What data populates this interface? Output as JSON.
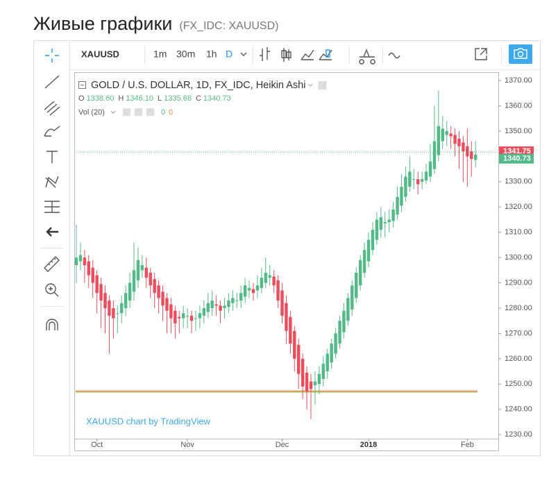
{
  "page": {
    "title": "Живые графики",
    "subtitle": "(FX_IDC: XAUUSD)"
  },
  "toolbar": {
    "symbol": "XAUUSD",
    "intervals": [
      "1m",
      "30m",
      "1h",
      "D"
    ]
  },
  "chart_data": {
    "type": "candlestick",
    "title": "GOLD / U.S. DOLLAR, 1D, FX_IDC, Heikin Ashi",
    "ohlc": [
      {
        "label": "O",
        "value": "1338.60"
      },
      {
        "label": "H",
        "value": "1346.10"
      },
      {
        "label": "L",
        "value": "1335.68"
      },
      {
        "label": "C",
        "value": "1340.73"
      }
    ],
    "volume": {
      "label": "Vol (20)",
      "values": [
        "0",
        "0"
      ]
    },
    "watermark": "XAUUSD chart by TradingView",
    "up_color": "#53b987",
    "down_color": "#eb4d5c",
    "categories": [
      null,
      null,
      null,
      null,
      null,
      "Oct",
      null,
      null,
      null,
      null,
      null,
      null,
      null,
      null,
      null,
      null,
      null,
      null,
      null,
      null,
      null,
      null,
      null,
      null,
      null,
      null,
      null,
      "Nov",
      null,
      null,
      null,
      null,
      null,
      null,
      null,
      null,
      null,
      null,
      null,
      null,
      null,
      null,
      null,
      null,
      null,
      null,
      null,
      null,
      null,
      null,
      "Dec",
      null,
      null,
      null,
      null,
      null,
      null,
      null,
      null,
      null,
      null,
      null,
      null,
      null,
      null,
      null,
      null,
      null,
      null,
      null,
      null,
      "2018",
      null,
      null,
      null,
      null,
      null,
      null,
      null,
      null,
      null,
      null,
      null,
      null,
      null,
      null,
      null,
      null,
      null,
      null,
      null,
      null,
      null,
      null,
      null,
      "Feb",
      null,
      null
    ],
    "open": [
      1297,
      1298.5,
      1300,
      1298.5,
      1296,
      1293,
      1289.5,
      1286,
      1283,
      1280,
      1278,
      1278,
      1280,
      1283,
      1286.5,
      1291,
      1295,
      1296,
      1294,
      1291.5,
      1289,
      1286.5,
      1284,
      1281.5,
      1279,
      1276.5,
      1276,
      1277,
      1277,
      1276,
      1276,
      1277,
      1278.5,
      1280,
      1281.5,
      1281,
      1280,
      1280.5,
      1282,
      1283,
      1283,
      1284.5,
      1287,
      1287.5,
      1287,
      1288,
      1290,
      1292,
      1292.5,
      1291,
      1287,
      1282,
      1276.5,
      1271,
      1265.5,
      1260,
      1254.5,
      1251,
      1249.5,
      1250,
      1252,
      1255,
      1258.5,
      1262,
      1266,
      1270.5,
      1275,
      1279.5,
      1284,
      1289,
      1294,
      1298.5,
      1303,
      1307,
      1311,
      1313.5,
      1314,
      1314.5,
      1317,
      1320.5,
      1324,
      1328,
      1331,
      1331,
      1330,
      1330.5,
      1332,
      1335,
      1340.5,
      1346,
      1348.5,
      1349,
      1348.5,
      1347,
      1345.5,
      1344,
      1342,
      1338.6
    ],
    "high": [
      1313,
      1306,
      1303,
      1301,
      1299,
      1295,
      1292,
      1289,
      1285,
      1283,
      1281,
      1285,
      1289,
      1294,
      1306,
      1304,
      1301,
      1300,
      1296,
      1294,
      1291,
      1289,
      1286,
      1284,
      1281,
      1279,
      1281,
      1280,
      1279,
      1279,
      1281,
      1283,
      1286,
      1287,
      1285,
      1283,
      1284,
      1286,
      1287,
      1286,
      1289,
      1292,
      1291,
      1290,
      1293,
      1296,
      1300,
      1297,
      1295,
      1293,
      1290,
      1285,
      1279,
      1273,
      1268,
      1262,
      1257,
      1254,
      1255,
      1257,
      1261,
      1264,
      1268,
      1272,
      1277,
      1282,
      1286,
      1291,
      1296,
      1301,
      1306,
      1310,
      1314,
      1318,
      1320,
      1318,
      1319,
      1322,
      1328,
      1333,
      1336,
      1340,
      1335,
      1334,
      1334,
      1337,
      1345,
      1360,
      1366,
      1356,
      1354,
      1352,
      1351,
      1350,
      1348,
      1351,
      1346,
      1346.1
    ],
    "low": [
      1290,
      1295,
      1290,
      1288,
      1284,
      1278,
      1272,
      1270,
      1262,
      1268,
      1270,
      1274,
      1277,
      1280,
      1283,
      1288,
      1292,
      1288,
      1284,
      1280,
      1278,
      1275,
      1270,
      1270,
      1268,
      1270,
      1272,
      1272,
      1270,
      1271,
      1272,
      1274,
      1276,
      1277,
      1277,
      1274,
      1276,
      1278,
      1279,
      1280,
      1280,
      1282,
      1284,
      1283,
      1284,
      1286,
      1288,
      1289,
      1286,
      1280,
      1274,
      1266,
      1262,
      1255,
      1248,
      1244,
      1240,
      1236,
      1242,
      1246,
      1249,
      1252,
      1256,
      1260,
      1264,
      1268,
      1273,
      1277,
      1282,
      1287,
      1292,
      1296,
      1301,
      1305,
      1308,
      1308,
      1310,
      1312,
      1315,
      1318,
      1322,
      1326,
      1327,
      1325,
      1327,
      1329,
      1330,
      1333,
      1338,
      1343,
      1344,
      1343,
      1340,
      1335,
      1330,
      1328,
      1332,
      1335.68
    ],
    "close": [
      1300,
      1301,
      1297,
      1293,
      1290,
      1286,
      1283,
      1280,
      1277,
      1276,
      1278,
      1282,
      1286,
      1290,
      1295,
      1299,
      1297,
      1292,
      1289,
      1286,
      1284,
      1281,
      1279,
      1276,
      1274,
      1276,
      1278,
      1277,
      1275,
      1276,
      1278,
      1280,
      1282,
      1283,
      1281,
      1279,
      1281,
      1283,
      1284,
      1283,
      1286,
      1289,
      1288,
      1286,
      1289,
      1292,
      1294,
      1293,
      1289,
      1283,
      1277,
      1271,
      1266,
      1260,
      1254,
      1249,
      1247,
      1248,
      1251,
      1254,
      1258,
      1262,
      1266,
      1270,
      1275,
      1279,
      1284,
      1289,
      1294,
      1299,
      1303,
      1307,
      1311,
      1315,
      1316,
      1314,
      1315,
      1319,
      1324,
      1328,
      1332,
      1334,
      1331,
      1329,
      1331,
      1334,
      1338,
      1346,
      1352,
      1351,
      1350,
      1348,
      1345,
      1344,
      1342,
      1340,
      1339,
      1340.73
    ],
    "ylim": [
      1228.4,
      1373.3
    ],
    "yticks": [
      {
        "value": 1230,
        "label": "1230.00"
      },
      {
        "value": 1240,
        "label": "1240.00"
      },
      {
        "value": 1250,
        "label": "1250.00"
      },
      {
        "value": 1260,
        "label": "1260.00"
      },
      {
        "value": 1270,
        "label": "1270.00"
      },
      {
        "value": 1280,
        "label": "1280.00"
      },
      {
        "value": 1290,
        "label": "1290.00"
      },
      {
        "value": 1300,
        "label": "1300.00"
      },
      {
        "value": 1310,
        "label": "1310.00"
      },
      {
        "value": 1320,
        "label": "1320.00"
      },
      {
        "value": 1330,
        "label": "1330.00"
      },
      {
        "value": 1340,
        "label": "1340.00"
      },
      {
        "value": 1350,
        "label": "1350.00"
      },
      {
        "value": 1360,
        "label": "1360.00"
      },
      {
        "value": 1370,
        "label": "1370.00"
      }
    ],
    "price_lines": [
      {
        "value": 1341.75,
        "color": "#eb4d5c",
        "dotted": true
      },
      {
        "value": 1340.73,
        "color": "#53b987",
        "dotted": false
      }
    ]
  }
}
